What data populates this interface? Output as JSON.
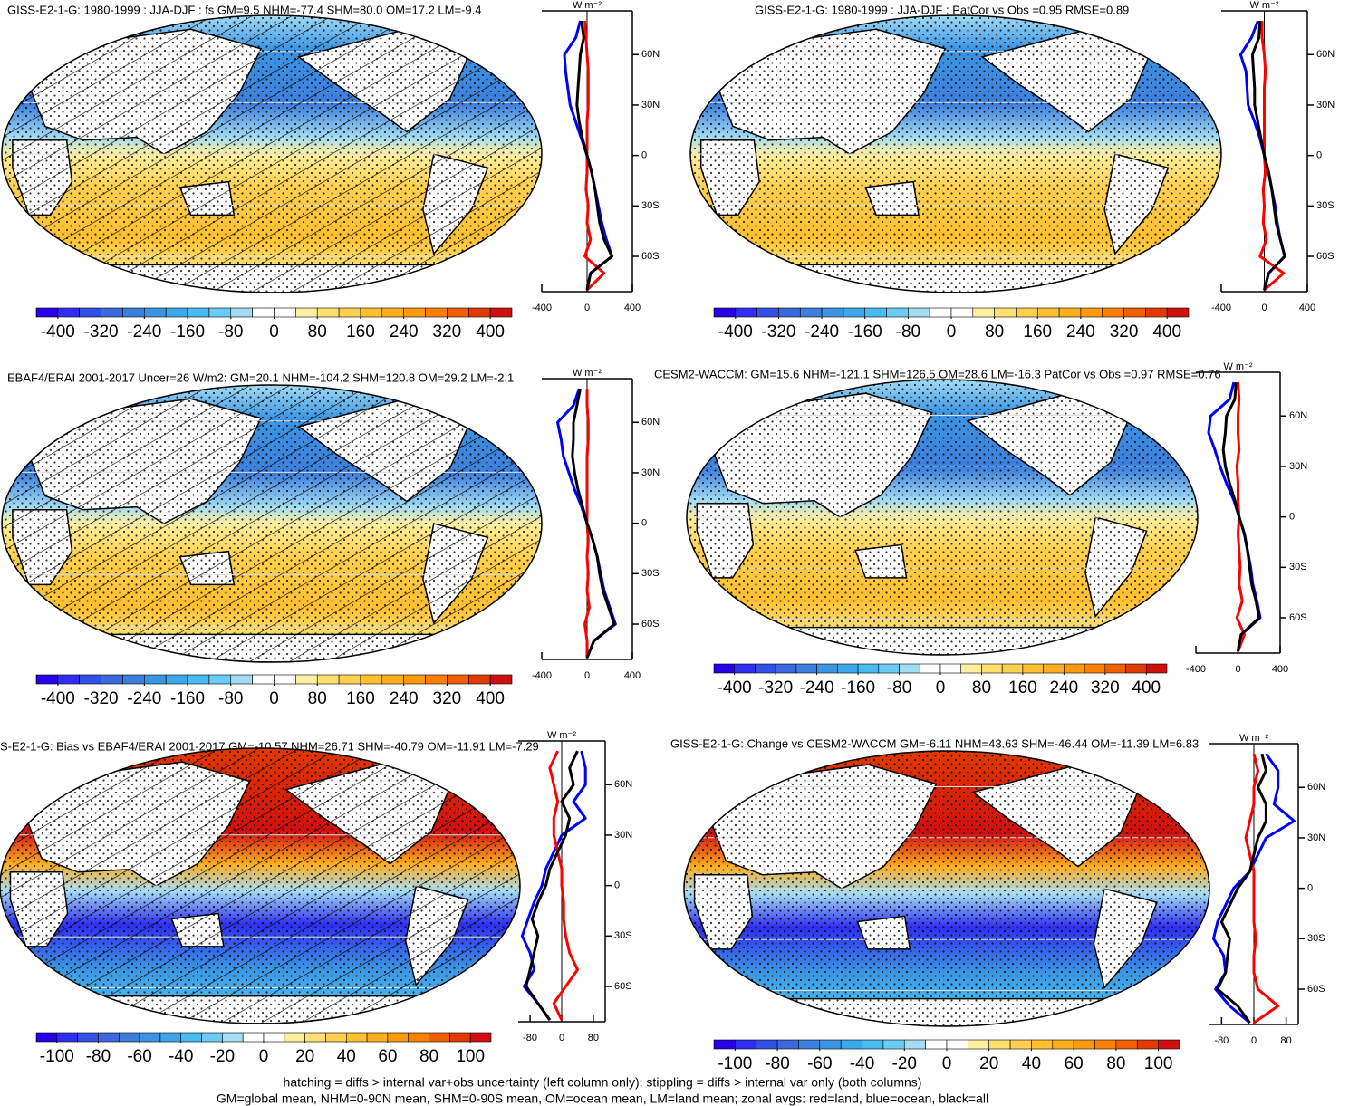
{
  "chart_data": [
    {
      "type": "zonal-map",
      "title": "GISS-E2-1-G: 1980-1999 : JJA-DJF : fs GM=9.5 NHM=-77.4 SHM=80.0 OM=17.2 LM=-9.4",
      "hatching": true,
      "stippling": true,
      "units": "W m⁻²",
      "xlim": [
        -400,
        400
      ],
      "xticks": [
        -400,
        0,
        400
      ],
      "ylim": [
        -81,
        86
      ],
      "yticks": [
        {
          "value": 60,
          "label": "60N"
        },
        {
          "value": 30,
          "label": "30N"
        },
        0,
        {
          "value": -30,
          "label": "30S"
        },
        {
          "value": -60,
          "label": "60S"
        }
      ],
      "x": [
        80,
        70,
        60,
        50,
        40,
        30,
        20,
        10,
        0,
        -10,
        -20,
        -30,
        -40,
        -50,
        -60,
        -70,
        -80
      ],
      "series": [
        {
          "color": "#0000ff",
          "values": [
            -60,
            -100,
            -200,
            -190,
            -170,
            -150,
            -100,
            -50,
            0,
            40,
            70,
            100,
            130,
            170,
            220,
            30,
            0
          ]
        },
        {
          "color": "#ff0000",
          "values": [
            -20,
            -10,
            0,
            10,
            10,
            10,
            0,
            0,
            0,
            0,
            -10,
            10,
            0,
            30,
            -20,
            150,
            0
          ]
        },
        {
          "color": "#000000",
          "values": [
            -50,
            -30,
            -60,
            -70,
            -80,
            -90,
            -70,
            -40,
            0,
            40,
            70,
            90,
            110,
            150,
            220,
            30,
            0
          ]
        }
      ],
      "colorbar": {
        "lim": [
          -440,
          440
        ],
        "ticks": [
          -400,
          -320,
          -240,
          -160,
          -80,
          0,
          80,
          160,
          240,
          320,
          400
        ],
        "colors": [
          "#2800e6",
          "#2f2ef0",
          "#3050e6",
          "#3b68dc",
          "#3d7fdc",
          "#3c95e2",
          "#3ca8ea",
          "#48bbf0",
          "#6ccbf4",
          "#a4dcf4",
          "#ffffff",
          "#ffffff",
          "#fff0a0",
          "#ffe070",
          "#ffd050",
          "#ffc030",
          "#ffae20",
          "#ff9a10",
          "#ff8000",
          "#f06000",
          "#e03a00",
          "#d01010"
        ]
      }
    },
    {
      "type": "zonal-map",
      "title": "GISS-E2-1-G: 1980-1999 : JJA-DJF : PatCor vs Obs =0.95 RMSE=0.89",
      "hatching": false,
      "stippling": true,
      "units": "W m⁻²",
      "xlim": [
        -400,
        400
      ],
      "xticks": [
        -400,
        0,
        400
      ],
      "ylim": [
        -81,
        86
      ],
      "yticks": [
        {
          "value": 60,
          "label": "60N"
        },
        {
          "value": 30,
          "label": "30N"
        },
        0,
        {
          "value": -30,
          "label": "30S"
        },
        {
          "value": -60,
          "label": "60S"
        }
      ],
      "x": [
        80,
        70,
        60,
        50,
        40,
        30,
        20,
        10,
        0,
        -10,
        -20,
        -30,
        -40,
        -50,
        -60,
        -70,
        -80
      ],
      "series": [
        {
          "color": "#0000ff",
          "values": [
            -60,
            -120,
            -220,
            -170,
            -160,
            -150,
            -90,
            -40,
            0,
            40,
            70,
            100,
            120,
            150,
            190,
            40,
            0
          ]
        },
        {
          "color": "#ff0000",
          "values": [
            -20,
            -20,
            0,
            10,
            0,
            0,
            0,
            0,
            0,
            10,
            -10,
            0,
            -10,
            20,
            -40,
            180,
            0
          ]
        },
        {
          "color": "#000000",
          "values": [
            -40,
            -50,
            -110,
            -100,
            -90,
            -90,
            -60,
            -30,
            0,
            40,
            70,
            90,
            110,
            150,
            190,
            40,
            0
          ]
        }
      ],
      "colorbar": {
        "lim": [
          -440,
          440
        ],
        "ticks": [
          -400,
          -320,
          -240,
          -160,
          -80,
          0,
          80,
          160,
          240,
          320,
          400
        ],
        "colors": [
          "#2800e6",
          "#2f2ef0",
          "#3050e6",
          "#3b68dc",
          "#3d7fdc",
          "#3c95e2",
          "#3ca8ea",
          "#48bbf0",
          "#6ccbf4",
          "#a4dcf4",
          "#ffffff",
          "#ffffff",
          "#fff0a0",
          "#ffe070",
          "#ffd050",
          "#ffc030",
          "#ffae20",
          "#ff9a10",
          "#ff8000",
          "#f06000",
          "#e03a00",
          "#d01010"
        ]
      }
    },
    {
      "type": "zonal-map",
      "title": "EBAF4/ERAI 2001-2017 Uncer=26 W/m2: GM=20.1 NHM=-104.2 SHM=120.8 OM=29.2 LM=-2.1",
      "hatching": true,
      "stippling": true,
      "units": "W m⁻²",
      "xlim": [
        -400,
        400
      ],
      "xticks": [
        -400,
        0,
        400
      ],
      "ylim": [
        -81,
        86
      ],
      "yticks": [
        {
          "value": 60,
          "label": "60N"
        },
        {
          "value": 30,
          "label": "30N"
        },
        0,
        {
          "value": -30,
          "label": "30S"
        },
        {
          "value": -60,
          "label": "60S"
        }
      ],
      "x": [
        80,
        70,
        60,
        50,
        40,
        30,
        20,
        10,
        0,
        -10,
        -20,
        -30,
        -40,
        -50,
        -60,
        -70,
        -80
      ],
      "series": [
        {
          "color": "#0000ff",
          "values": [
            -70,
            -120,
            -260,
            -230,
            -210,
            -160,
            -110,
            -50,
            0,
            50,
            90,
            120,
            150,
            200,
            250,
            60,
            0
          ]
        },
        {
          "color": "#ff0000",
          "values": [
            0,
            0,
            10,
            10,
            0,
            0,
            0,
            0,
            0,
            10,
            0,
            10,
            0,
            20,
            -20,
            0,
            0
          ]
        },
        {
          "color": "#000000",
          "values": [
            -60,
            -90,
            -120,
            -120,
            -130,
            -110,
            -80,
            -40,
            0,
            50,
            90,
            110,
            140,
            190,
            240,
            60,
            0
          ]
        }
      ],
      "colorbar": {
        "lim": [
          -440,
          440
        ],
        "ticks": [
          -400,
          -320,
          -240,
          -160,
          -80,
          0,
          80,
          160,
          240,
          320,
          400
        ],
        "colors": [
          "#2800e6",
          "#2f2ef0",
          "#3050e6",
          "#3b68dc",
          "#3d7fdc",
          "#3c95e2",
          "#3ca8ea",
          "#48bbf0",
          "#6ccbf4",
          "#a4dcf4",
          "#ffffff",
          "#ffffff",
          "#fff0a0",
          "#ffe070",
          "#ffd050",
          "#ffc030",
          "#ffae20",
          "#ff9a10",
          "#ff8000",
          "#f06000",
          "#e03a00",
          "#d01010"
        ]
      }
    },
    {
      "type": "zonal-map",
      "title": "CESM2-WACCM: GM=15.6 NHM=-121.1 SHM=126.5 OM=28.6 LM=-16.3 PatCor vs Obs =0.97 RMSE=0.76",
      "hatching": false,
      "stippling": true,
      "units": "W m⁻²",
      "xlim": [
        -400,
        400
      ],
      "xticks": [
        -400,
        0,
        400
      ],
      "ylim": [
        -81,
        86
      ],
      "yticks": [
        {
          "value": 60,
          "label": "60N"
        },
        {
          "value": 30,
          "label": "30N"
        },
        0,
        {
          "value": -30,
          "label": "30S"
        },
        {
          "value": -60,
          "label": "60S"
        }
      ],
      "x": [
        80,
        70,
        60,
        50,
        40,
        30,
        20,
        10,
        0,
        -10,
        -20,
        -30,
        -40,
        -50,
        -60,
        -70,
        -80
      ],
      "series": [
        {
          "color": "#0000ff",
          "values": [
            -40,
            -80,
            -260,
            -280,
            -220,
            -170,
            -110,
            -40,
            10,
            60,
            90,
            120,
            140,
            180,
            210,
            30,
            0
          ]
        },
        {
          "color": "#ff0000",
          "values": [
            0,
            10,
            0,
            0,
            10,
            -10,
            0,
            0,
            10,
            0,
            10,
            20,
            10,
            40,
            -10,
            60,
            0
          ]
        },
        {
          "color": "#000000",
          "values": [
            -20,
            -30,
            -110,
            -120,
            -140,
            -120,
            -80,
            -30,
            10,
            60,
            90,
            110,
            130,
            170,
            200,
            30,
            0
          ]
        }
      ],
      "colorbar": {
        "lim": [
          -440,
          440
        ],
        "ticks": [
          -400,
          -320,
          -240,
          -160,
          -80,
          0,
          80,
          160,
          240,
          320,
          400
        ],
        "colors": [
          "#2800e6",
          "#2f2ef0",
          "#3050e6",
          "#3b68dc",
          "#3d7fdc",
          "#3c95e2",
          "#3ca8ea",
          "#48bbf0",
          "#6ccbf4",
          "#a4dcf4",
          "#ffffff",
          "#ffffff",
          "#fff0a0",
          "#ffe070",
          "#ffd050",
          "#ffc030",
          "#ffae20",
          "#ff9a10",
          "#ff8000",
          "#f06000",
          "#e03a00",
          "#d01010"
        ]
      }
    },
    {
      "type": "zonal-map",
      "title": "S-E2-1-G: Bias vs EBAF4/ERAI 2001-2017 GM=-10.57 NHM=26.71 SHM=-40.79 OM=-11.91 LM=-7.29",
      "hatching": true,
      "stippling": true,
      "units": "W m⁻²",
      "xlim": [
        -110,
        110
      ],
      "xticks": [
        -80,
        0,
        80
      ],
      "ylim": [
        -81,
        86
      ],
      "yticks": [
        {
          "value": 60,
          "label": "60N"
        },
        {
          "value": 30,
          "label": "30N"
        },
        0,
        {
          "value": -30,
          "label": "30S"
        },
        {
          "value": -60,
          "label": "60S"
        }
      ],
      "x": [
        80,
        70,
        60,
        50,
        40,
        30,
        20,
        10,
        0,
        -10,
        -20,
        -30,
        -40,
        -50,
        -60,
        -70,
        -80
      ],
      "series": [
        {
          "color": "#0000ff",
          "values": [
            50,
            60,
            60,
            30,
            60,
            0,
            -20,
            -40,
            -50,
            -70,
            -85,
            -100,
            -80,
            -70,
            -95,
            -60,
            -30
          ]
        },
        {
          "color": "#ff0000",
          "values": [
            -10,
            -30,
            -20,
            -10,
            -20,
            -20,
            -10,
            0,
            0,
            5,
            5,
            10,
            20,
            40,
            10,
            -20,
            0
          ]
        },
        {
          "color": "#000000",
          "values": [
            40,
            20,
            30,
            0,
            20,
            10,
            -10,
            -30,
            -40,
            -60,
            -75,
            -60,
            -70,
            -80,
            -90,
            -60,
            -30
          ]
        }
      ],
      "colorbar": {
        "lim": [
          -110,
          110
        ],
        "ticks": [
          -100,
          -80,
          -60,
          -40,
          -20,
          0,
          20,
          40,
          60,
          80,
          100
        ],
        "colors": [
          "#2800e6",
          "#2f2ef0",
          "#3050e6",
          "#3b68dc",
          "#3d7fdc",
          "#3c95e2",
          "#3ca8ea",
          "#48bbf0",
          "#6ccbf4",
          "#a4dcf4",
          "#ffffff",
          "#ffffff",
          "#fff0a0",
          "#ffe070",
          "#ffd050",
          "#ffc030",
          "#ffae20",
          "#ff9a10",
          "#ff8000",
          "#f06000",
          "#e03a00",
          "#d01010"
        ]
      }
    },
    {
      "type": "zonal-map",
      "title": "GISS-E2-1-G: Change vs CESM2-WACCM GM=-6.11 NHM=43.63 SHM=-46.44 OM=-11.39 LM=6.83",
      "hatching": false,
      "stippling": true,
      "units": "W m⁻²",
      "xlim": [
        -110,
        110
      ],
      "xticks": [
        -80,
        0,
        80
      ],
      "ylim": [
        -81,
        86
      ],
      "yticks": [
        {
          "value": 60,
          "label": "60N"
        },
        {
          "value": 30,
          "label": "30N"
        },
        0,
        {
          "value": -30,
          "label": "30S"
        },
        {
          "value": -60,
          "label": "60S"
        }
      ],
      "x": [
        80,
        70,
        60,
        50,
        40,
        30,
        20,
        10,
        0,
        -10,
        -20,
        -30,
        -40,
        -50,
        -60,
        -70,
        -80
      ],
      "series": [
        {
          "color": "#0000ff",
          "values": [
            30,
            60,
            60,
            50,
            100,
            30,
            10,
            -10,
            -50,
            -70,
            -90,
            -100,
            -75,
            -70,
            -95,
            -60,
            -10
          ]
        },
        {
          "color": "#ff0000",
          "values": [
            0,
            10,
            0,
            0,
            -10,
            -20,
            -10,
            0,
            0,
            0,
            0,
            5,
            0,
            0,
            10,
            60,
            0
          ]
        },
        {
          "color": "#000000",
          "values": [
            20,
            30,
            10,
            30,
            30,
            10,
            0,
            -10,
            -40,
            -60,
            -80,
            -60,
            -65,
            -70,
            -90,
            -40,
            -10
          ]
        }
      ],
      "colorbar": {
        "lim": [
          -110,
          110
        ],
        "ticks": [
          -100,
          -80,
          -60,
          -40,
          -20,
          0,
          20,
          40,
          60,
          80,
          100
        ],
        "colors": [
          "#2800e6",
          "#2f2ef0",
          "#3050e6",
          "#3b68dc",
          "#3d7fdc",
          "#3c95e2",
          "#3ca8ea",
          "#48bbf0",
          "#6ccbf4",
          "#a4dcf4",
          "#ffffff",
          "#ffffff",
          "#fff0a0",
          "#ffe070",
          "#ffd050",
          "#ffc030",
          "#ffae20",
          "#ff9a10",
          "#ff8000",
          "#f06000",
          "#e03a00",
          "#d01010"
        ]
      }
    }
  ],
  "notes": [
    "hatching = diffs > internal var+obs uncertainty (left column only); stippling = diffs > internal var only (both columns)",
    "GM=global mean, NHM=0-90N mean, SHM=0-90S mean, OM=ocean mean, LM=land mean; zonal avgs: red=land, blue=ocean, black=all"
  ]
}
